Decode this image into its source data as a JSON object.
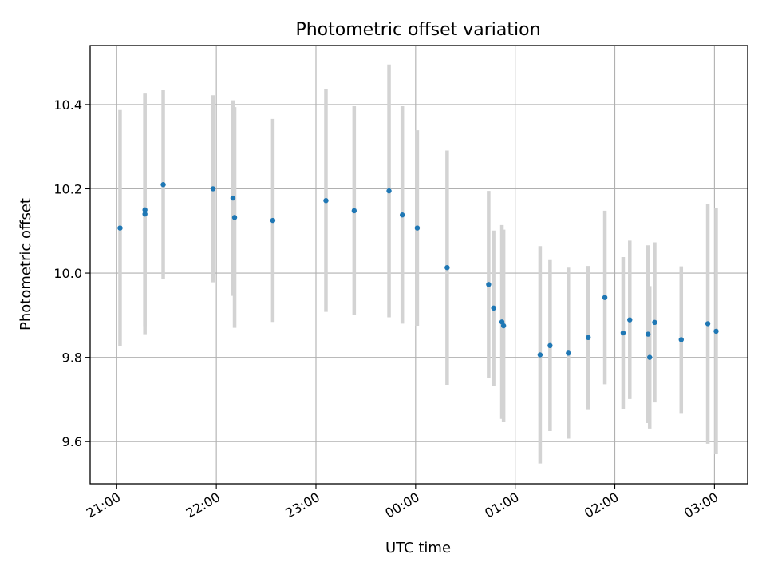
{
  "chart_data": {
    "type": "scatter",
    "title": "Photometric offset variation",
    "xlabel": "UTC time",
    "ylabel": "Photometric offset",
    "x_is_time": true,
    "xlim": [
      "20:44",
      "03:20"
    ],
    "ylim": [
      9.5,
      10.54
    ],
    "xticks": [
      "21:00",
      "22:00",
      "23:00",
      "00:00",
      "01:00",
      "02:00",
      "03:00"
    ],
    "yticks": [
      9.6,
      9.8,
      10.0,
      10.2,
      10.4
    ],
    "grid": true,
    "colors": {
      "point": "#1f77b4",
      "errorbar": "#d3d3d3",
      "grid": "#b0b0b0"
    },
    "series": [
      {
        "x": [
          "21:02",
          "21:17",
          "21:17",
          "21:28",
          "21:58",
          "22:10",
          "22:11",
          "22:34",
          "23:06",
          "23:23",
          "23:44",
          "23:52",
          "00:01",
          "00:19",
          "00:44",
          "00:47",
          "00:52",
          "00:53",
          "01:15",
          "01:21",
          "01:32",
          "01:44",
          "01:54",
          "02:05",
          "02:09",
          "02:20",
          "02:21",
          "02:24",
          "02:40",
          "02:56",
          "03:01"
        ],
        "y": [
          10.107,
          10.15,
          10.14,
          10.21,
          10.2,
          10.178,
          10.132,
          10.125,
          10.172,
          10.148,
          10.195,
          10.138,
          10.107,
          10.013,
          9.973,
          9.917,
          9.884,
          9.875,
          9.806,
          9.828,
          9.81,
          9.847,
          9.942,
          9.858,
          9.889,
          9.855,
          9.8,
          9.883,
          9.842,
          9.88,
          9.862
        ],
        "yerr": [
          0.28,
          0.276,
          0.285,
          0.224,
          0.222,
          0.232,
          0.262,
          0.241,
          0.264,
          0.248,
          0.3,
          0.258,
          0.232,
          0.278,
          0.222,
          0.184,
          0.23,
          0.228,
          0.258,
          0.203,
          0.203,
          0.17,
          0.206,
          0.18,
          0.188,
          0.211,
          0.169,
          0.19,
          0.174,
          0.285,
          0.292
        ]
      }
    ]
  }
}
